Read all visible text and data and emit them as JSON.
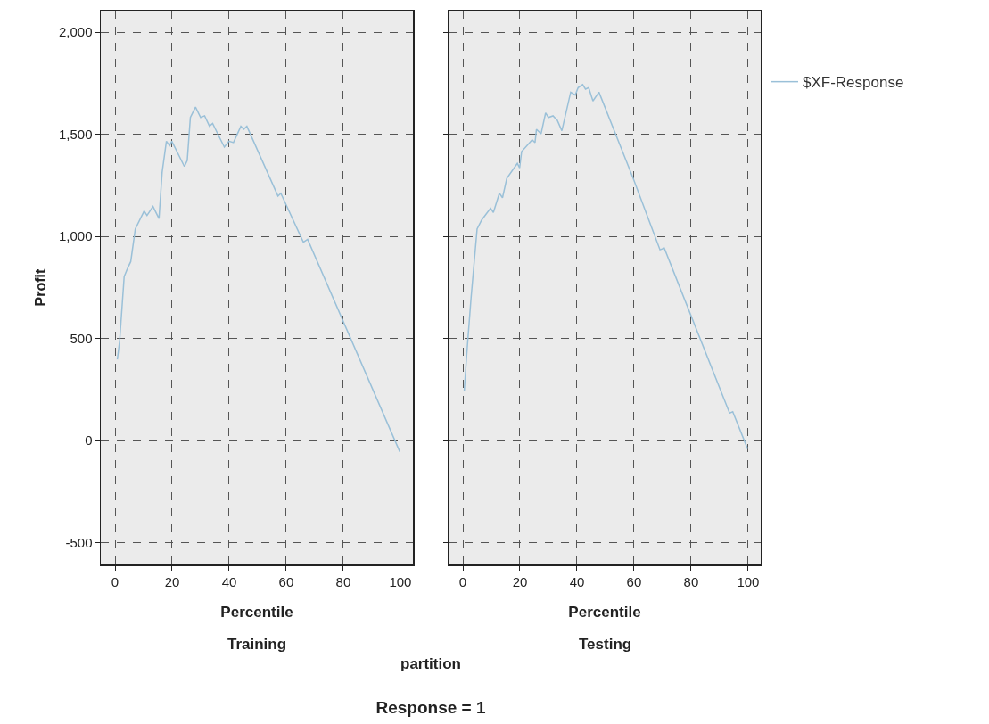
{
  "chart_data": [
    {
      "type": "line",
      "title": "Training",
      "xlabel": "Percentile",
      "ylabel": "Profit",
      "annotations": [
        "partition",
        "Response = 1"
      ],
      "grid": true,
      "legend": false,
      "marker": "none",
      "line_style": "solid",
      "xlim": [
        -5,
        104.4
      ],
      "xticks": [
        0,
        20,
        40,
        60,
        80,
        100
      ],
      "ylim": [
        -607,
        2105
      ],
      "yticks": [
        {
          "value": -500,
          "label": "-500"
        },
        0,
        500,
        {
          "value": 1000,
          "label": "1,000"
        },
        {
          "value": 1500,
          "label": "1,500"
        },
        {
          "value": 2000,
          "label": "2,000"
        }
      ],
      "series": [
        {
          "color": "#9ac0d8",
          "x": [
            0.8,
            1.6,
            3.2,
            4.5,
            5.5,
            7.1,
            10.2,
            11.2,
            13.3,
            15.4,
            16.5,
            18.0,
            19.1,
            19.9,
            24.3,
            25.3,
            26.4,
            28.2,
            30,
            31.4,
            33.1,
            34.2,
            38.3,
            39.9,
            41.5,
            44.1,
            45.1,
            46.2,
            57.1,
            58.1,
            66,
            67.5,
            99.8
          ],
          "values": [
            397,
            485,
            803,
            847,
            876,
            1036,
            1124,
            1102,
            1146,
            1087,
            1313,
            1466,
            1444,
            1466,
            1342,
            1371,
            1582,
            1633,
            1582,
            1590,
            1539,
            1553,
            1437,
            1466,
            1459,
            1539,
            1524,
            1539,
            1197,
            1211,
            971,
            985,
            -55
          ]
        }
      ]
    },
    {
      "type": "line",
      "title": "Testing",
      "xlabel": "Percentile",
      "grid": true,
      "legend": "right",
      "marker": "none",
      "line_style": "solid",
      "tick_labels": "x",
      "xlim": [
        -5,
        104.4
      ],
      "xticks": [
        0,
        20,
        40,
        60,
        80,
        100
      ],
      "ylim": [
        -607,
        2105
      ],
      "yticks": [
        -500,
        0,
        500,
        1000,
        1500,
        2000
      ],
      "series": [
        {
          "name": "$XF-Response",
          "color": "#9ac0d8",
          "x": [
            0.5,
            1.3,
            2.9,
            5,
            6.6,
            9.7,
            10.7,
            12.8,
            13.9,
            15.4,
            19.1,
            19.9,
            20.6,
            24.3,
            25.3,
            25.8,
            27.4,
            29,
            30,
            31.6,
            33.1,
            34.7,
            37.8,
            39.4,
            40.4,
            42,
            43,
            44.1,
            45.6,
            47.7,
            59.7,
            69.1,
            70.6,
            93.5,
            94.6,
            99.8
          ],
          "values": [
            243,
            410,
            702,
            1036,
            1080,
            1138,
            1117,
            1211,
            1189,
            1284,
            1357,
            1335,
            1415,
            1473,
            1459,
            1524,
            1502,
            1604,
            1582,
            1590,
            1568,
            1517,
            1706,
            1692,
            1728,
            1743,
            1721,
            1728,
            1663,
            1706,
            1284,
            934,
            942,
            134,
            141,
            -41
          ]
        }
      ]
    }
  ]
}
